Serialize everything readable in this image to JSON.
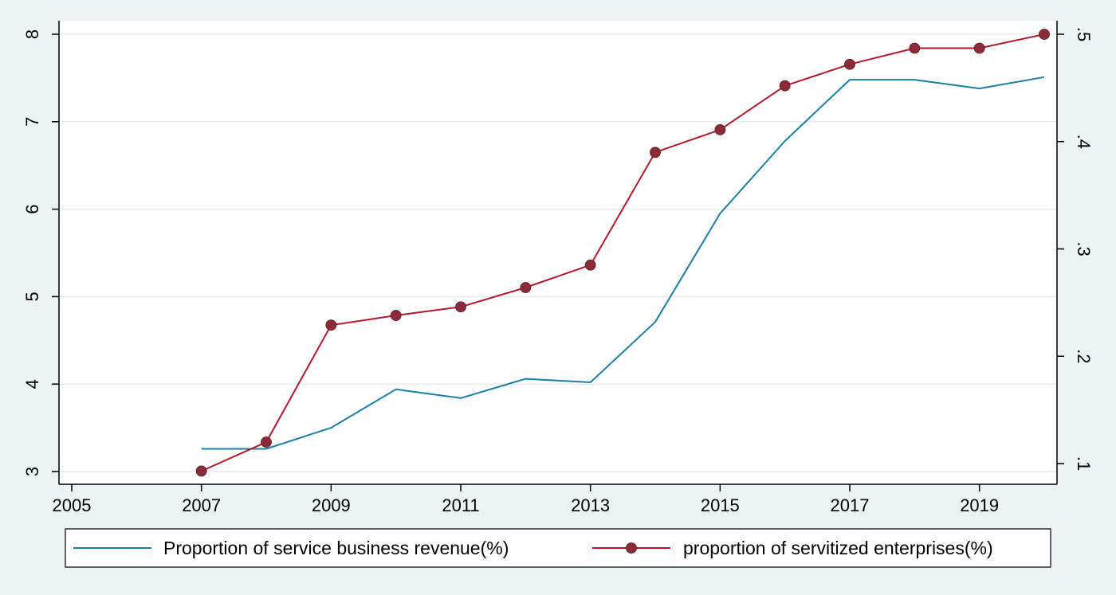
{
  "chart_data": {
    "type": "line",
    "title": "",
    "xlabel": "",
    "ylabel": "",
    "x": [
      2007,
      2008,
      2009,
      2010,
      2011,
      2012,
      2013,
      2014,
      2015,
      2016,
      2017,
      2018,
      2019,
      2020
    ],
    "xlim": [
      2005,
      2020
    ],
    "xticks": [
      2005,
      2007,
      2009,
      2011,
      2013,
      2015,
      2017,
      2019
    ],
    "x_tick_labels": [
      "2005",
      "2007",
      "2009",
      "2011",
      "2013",
      "2015",
      "2017",
      "2019"
    ],
    "ylim_left": [
      3,
      8
    ],
    "yticks_left": [
      3,
      4,
      5,
      6,
      7,
      8
    ],
    "y_left_tick_labels": [
      "3",
      "4",
      "5",
      "6",
      "7",
      "8"
    ],
    "ylim_right": [
      0.1,
      0.5
    ],
    "yticks_right": [
      0.1,
      0.2,
      0.3,
      0.4,
      0.5
    ],
    "y_right_tick_labels": [
      ".1",
      ".2",
      ".3",
      ".4",
      ".5"
    ],
    "grid": true,
    "legend_position": "bottom",
    "series": [
      {
        "name": "Proportion of service business revenue(%)",
        "axis": "left",
        "color": "#1a7fa8",
        "marker": "none",
        "values": [
          3.26,
          3.26,
          3.5,
          3.94,
          3.84,
          4.06,
          4.02,
          4.71,
          5.95,
          6.78,
          7.48,
          7.48,
          7.38,
          7.51
        ]
      },
      {
        "name": "proportion of servitized enterprises(%)",
        "axis": "right",
        "color": "#b5182a",
        "marker": "circle",
        "marker_color": "#8c2b37",
        "values": [
          0.093,
          0.12,
          0.229,
          0.238,
          0.246,
          0.264,
          0.285,
          0.39,
          0.411,
          0.452,
          0.472,
          0.487,
          0.487,
          0.5
        ]
      }
    ]
  }
}
